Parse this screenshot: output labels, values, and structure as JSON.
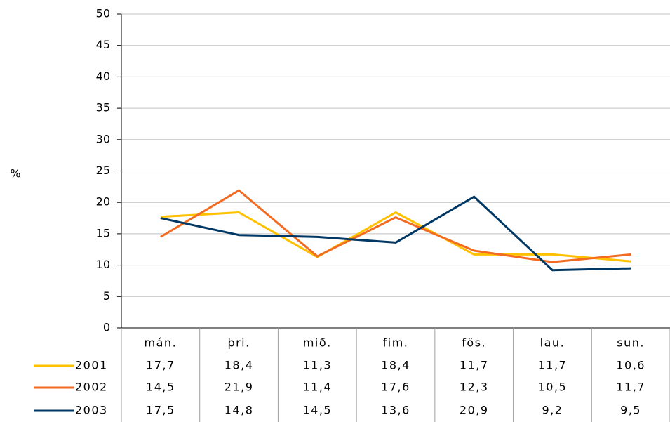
{
  "chart_data": {
    "type": "line",
    "y_label": "%",
    "categories": [
      "mán.",
      "þri.",
      "mið.",
      "fim.",
      "fös.",
      "lau.",
      "sun."
    ],
    "series": [
      {
        "name": "2001",
        "color": "#FFC000",
        "values": [
          17.7,
          18.4,
          11.3,
          18.4,
          11.7,
          11.7,
          10.6
        ],
        "value_labels": [
          "17,7",
          "18,4",
          "11,3",
          "18,4",
          "11,7",
          "11,7",
          "10,6"
        ]
      },
      {
        "name": "2002",
        "color": "#F26B21",
        "values": [
          14.5,
          21.9,
          11.4,
          17.6,
          12.3,
          10.5,
          11.7
        ],
        "value_labels": [
          "14,5",
          "21,9",
          "11,4",
          "17,6",
          "12,3",
          "10,5",
          "11,7"
        ]
      },
      {
        "name": "2003",
        "color": "#003865",
        "values": [
          17.5,
          14.8,
          14.5,
          13.6,
          20.9,
          9.2,
          9.5
        ],
        "value_labels": [
          "17,5",
          "14,8",
          "14,5",
          "13,6",
          "20,9",
          "9,2",
          "9,5"
        ]
      }
    ],
    "ylim": [
      0,
      50
    ],
    "yticks": [
      0,
      5,
      10,
      15,
      20,
      25,
      30,
      35,
      40,
      45,
      50
    ],
    "grid": true
  }
}
